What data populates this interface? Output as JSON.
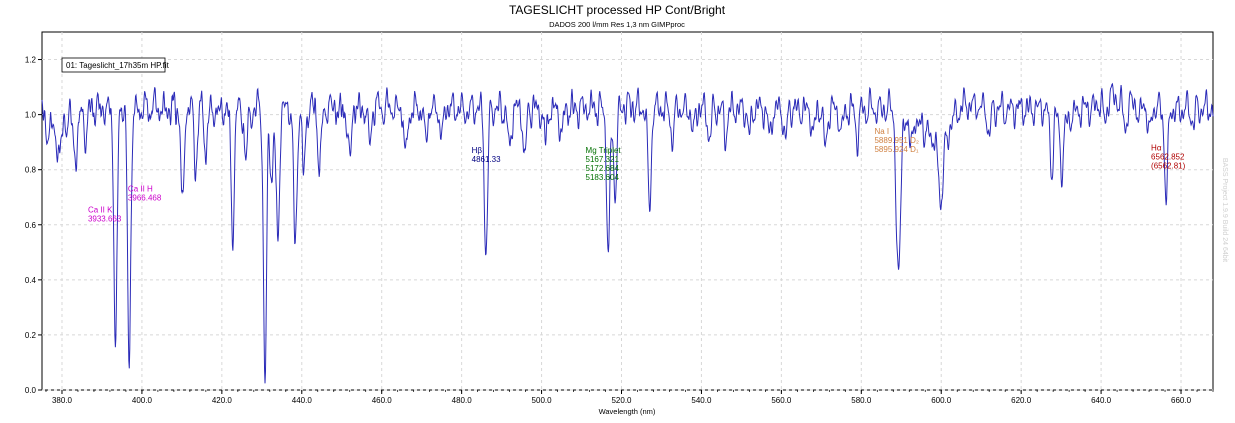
{
  "chart_data": {
    "type": "line",
    "title": "TAGESLICHT  processed HP Cont/Bright",
    "subtitle": "DADOS  200 l/mm  Res 1,3 nm  GIMPproc",
    "xlabel": "Wavelength (nm)",
    "ylabel": "",
    "xlim": [
      375,
      668
    ],
    "ylim": [
      0,
      1.3
    ],
    "grid": true,
    "legend_position": "top-left",
    "watermark": "BASS Project 1.9.9 Build 24 64bit",
    "x_ticks": [
      "380.0",
      "400.0",
      "420.0",
      "440.0",
      "460.0",
      "480.0",
      "500.0",
      "520.0",
      "540.0",
      "560.0",
      "580.0",
      "600.0",
      "620.0",
      "640.0",
      "660.0"
    ],
    "y_ticks": [
      "0.0",
      "0.2",
      "0.4",
      "0.6",
      "0.8",
      "1.0",
      "1.2"
    ],
    "series": [
      {
        "name": "01: Tageslicht_17h35m HP.fit",
        "color": "#2b2bb8",
        "baseline": 1.02,
        "lines": [
          [
            376.0,
            0.05
          ],
          [
            379.5,
            0.08
          ],
          [
            383.0,
            0.13
          ],
          [
            383.8,
            0.12
          ],
          [
            386.0,
            0.1
          ],
          [
            393.4,
            0.89
          ],
          [
            396.8,
            0.93
          ],
          [
            410.2,
            0.38
          ],
          [
            413.5,
            0.22
          ],
          [
            416.0,
            0.18
          ],
          [
            422.7,
            0.46
          ],
          [
            426.0,
            0.2
          ],
          [
            430.8,
            1.02
          ],
          [
            432.5,
            0.25
          ],
          [
            434.0,
            0.5
          ],
          [
            438.4,
            0.52
          ],
          [
            440.5,
            0.25
          ],
          [
            444.5,
            0.22
          ],
          [
            452.0,
            0.2
          ],
          [
            457.0,
            0.15
          ],
          [
            466.0,
            0.18
          ],
          [
            471.0,
            0.12
          ],
          [
            475.0,
            0.1
          ],
          [
            486.1,
            0.55
          ],
          [
            492.0,
            0.15
          ],
          [
            495.8,
            0.18
          ],
          [
            501.0,
            0.12
          ],
          [
            505.0,
            0.1
          ],
          [
            516.7,
            0.55
          ],
          [
            518.4,
            0.3
          ],
          [
            527.0,
            0.38
          ],
          [
            532.8,
            0.12
          ],
          [
            538.0,
            0.1
          ],
          [
            542.0,
            0.12
          ],
          [
            546.0,
            0.1
          ],
          [
            552.0,
            0.1
          ],
          [
            557.0,
            0.1
          ],
          [
            561.0,
            0.12
          ],
          [
            568.0,
            0.1
          ],
          [
            571.0,
            0.15
          ],
          [
            575.0,
            0.1
          ],
          [
            579.0,
            0.12
          ],
          [
            589.0,
            0.45
          ],
          [
            589.6,
            0.4
          ],
          [
            594.0,
            0.1
          ],
          [
            596.0,
            0.12
          ],
          [
            600.0,
            0.18
          ],
          [
            612.0,
            0.1
          ],
          [
            627.6,
            0.22
          ],
          [
            630.2,
            0.18
          ],
          [
            641.0,
            0.1
          ],
          [
            646.0,
            0.08
          ],
          [
            649.5,
            0.08
          ],
          [
            652.0,
            0.12
          ],
          [
            656.3,
            0.33
          ],
          [
            663.0,
            0.05
          ]
        ],
        "bands": [
          [
            376.0,
            381.0,
            0.1
          ],
          [
            591.0,
            593.0,
            0.12
          ],
          [
            597.0,
            601.0,
            0.14
          ],
          [
            599.0,
            603.0,
            0.08
          ],
          [
            605.0,
            609.0,
            -0.02
          ],
          [
            628.0,
            633.0,
            0.05
          ],
          [
            639.0,
            645.0,
            -0.05
          ],
          [
            647.0,
            652.0,
            -0.03
          ]
        ]
      }
    ],
    "annotations": [
      {
        "lines": [
          "Ca II K",
          "3933.663"
        ],
        "x_nm": 386.5,
        "y": 0.645,
        "color": "#cc00cc"
      },
      {
        "lines": [
          "Ca II H",
          "3966.468"
        ],
        "x_nm": 396.5,
        "y": 0.72,
        "color": "#cc00cc"
      },
      {
        "lines": [
          "Hβ",
          "4861.33"
        ],
        "x_nm": 482.5,
        "y": 0.86,
        "color": "#000080"
      },
      {
        "lines": [
          "Mg Triplet",
          "5167.321",
          "5172.684",
          "5183.604"
        ],
        "x_nm": 511.0,
        "y": 0.86,
        "color": "#007000"
      },
      {
        "lines": [
          "Na I",
          "5889.951 D₂",
          "5895.924 D₁"
        ],
        "x_nm": 583.3,
        "y": 0.93,
        "color": "#d08040"
      },
      {
        "lines": [
          "Hα",
          "6562.852",
          "(6562.81)"
        ],
        "x_nm": 652.5,
        "y": 0.87,
        "color": "#b00000"
      }
    ]
  }
}
